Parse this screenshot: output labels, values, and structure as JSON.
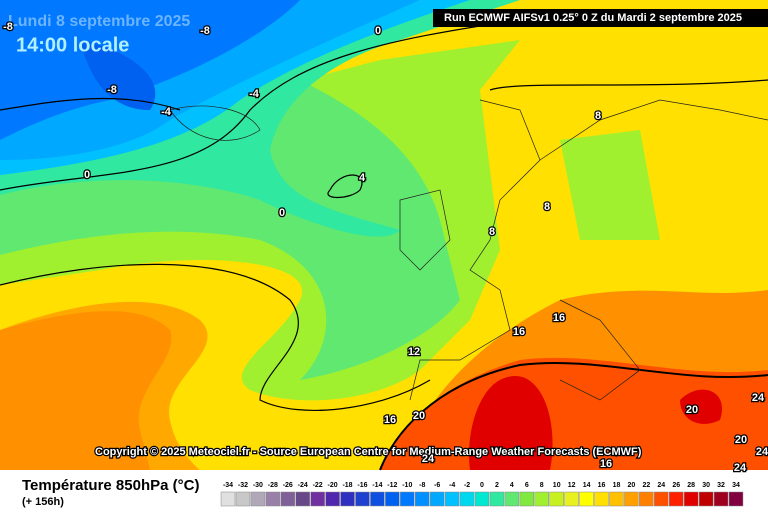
{
  "header": {
    "date": "Lundi 8 septembre 2025",
    "time": "14:00 locale",
    "run": "Run ECMWF AIFSv1 0.25° 0 Z du Mardi 2 septembre 2025"
  },
  "copyright": "Copyright © 2025 Meteociel.fr - Source European Centre for Medium-Range Weather Forecasts (ECMWF)",
  "contour_labels": [
    -8,
    -8,
    -8,
    0,
    -4,
    -4,
    0,
    4,
    0,
    8,
    8,
    8,
    12,
    16,
    16,
    16,
    20,
    20,
    24,
    20,
    24,
    24,
    16,
    24
  ],
  "legend": {
    "title": "Température 850hPa (°C)",
    "subtitle": "(+ 156h)",
    "ticks": [
      -34,
      -32,
      -30,
      -28,
      -26,
      -24,
      -22,
      -20,
      -18,
      -16,
      -14,
      -12,
      -10,
      -8,
      -6,
      -4,
      -2,
      0,
      2,
      4,
      6,
      8,
      10,
      12,
      14,
      16,
      18,
      20,
      22,
      24,
      26,
      28,
      30,
      32,
      34
    ],
    "colors": [
      "#e0e0e0",
      "#c8c8c8",
      "#b0a8b8",
      "#9880a8",
      "#806098",
      "#684888",
      "#7030a0",
      "#5028b0",
      "#3030c0",
      "#2040d0",
      "#1050e0",
      "#0060f0",
      "#0078ff",
      "#0090ff",
      "#00a8ff",
      "#00c0ff",
      "#00d8f0",
      "#00e8d0",
      "#30e8a0",
      "#60e870",
      "#80e840",
      "#a0f030",
      "#c8f020",
      "#e8f020",
      "#ffff00",
      "#ffe000",
      "#ffc000",
      "#ffa000",
      "#ff8000",
      "#ff5000",
      "#ff2000",
      "#e00000",
      "#c00000",
      "#a00020",
      "#800040"
    ]
  }
}
